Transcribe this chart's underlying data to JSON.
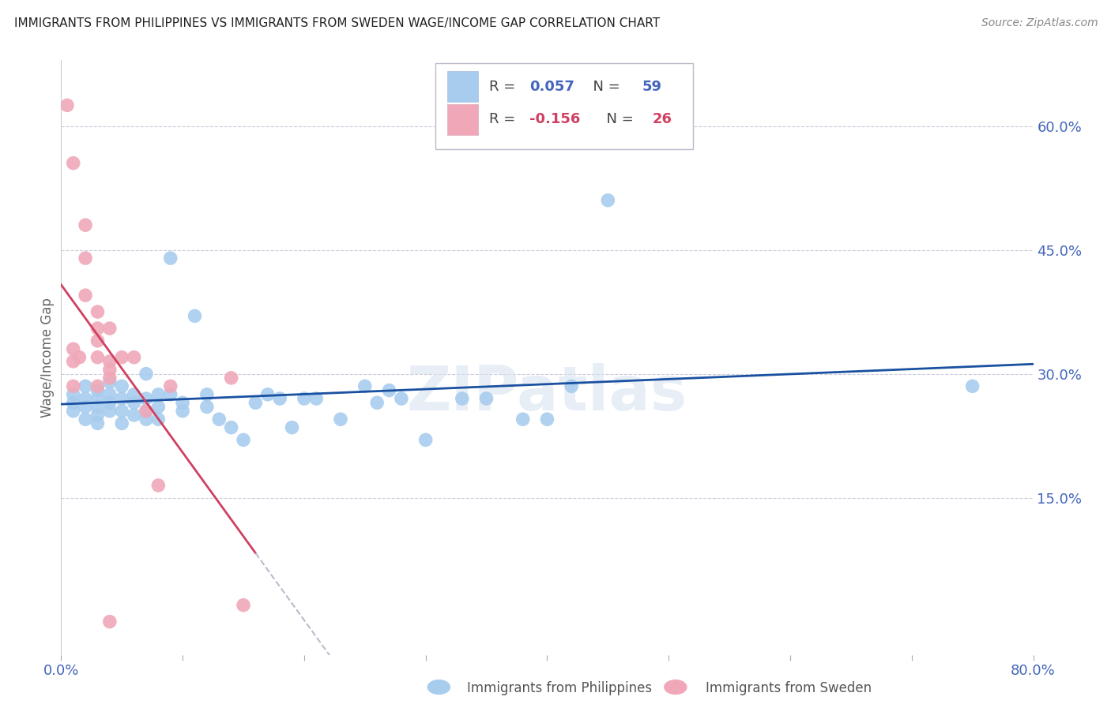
{
  "title": "IMMIGRANTS FROM PHILIPPINES VS IMMIGRANTS FROM SWEDEN WAGE/INCOME GAP CORRELATION CHART",
  "source": "Source: ZipAtlas.com",
  "ylabel": "Wage/Income Gap",
  "xlim": [
    0.0,
    0.8
  ],
  "ylim": [
    -0.04,
    0.68
  ],
  "xticks": [
    0.0,
    0.1,
    0.2,
    0.3,
    0.4,
    0.5,
    0.6,
    0.7,
    0.8
  ],
  "xticklabels": [
    "0.0%",
    "",
    "",
    "",
    "",
    "",
    "",
    "",
    "80.0%"
  ],
  "yticks_right": [
    0.15,
    0.3,
    0.45,
    0.6
  ],
  "ytick_labels_right": [
    "15.0%",
    "30.0%",
    "45.0%",
    "60.0%"
  ],
  "blue_color": "#A8CCEE",
  "pink_color": "#F0A8B8",
  "blue_line_color": "#1A50A0",
  "pink_line_color": "#D04060",
  "legend_R_blue": "0.057",
  "legend_N_blue": "59",
  "legend_R_pink": "-0.156",
  "legend_N_pink": "26",
  "blue_scatter_x": [
    0.01,
    0.01,
    0.01,
    0.02,
    0.02,
    0.02,
    0.02,
    0.03,
    0.03,
    0.03,
    0.03,
    0.03,
    0.04,
    0.04,
    0.04,
    0.04,
    0.05,
    0.05,
    0.05,
    0.05,
    0.06,
    0.06,
    0.06,
    0.07,
    0.07,
    0.07,
    0.07,
    0.08,
    0.08,
    0.08,
    0.09,
    0.09,
    0.1,
    0.1,
    0.11,
    0.12,
    0.12,
    0.13,
    0.14,
    0.15,
    0.16,
    0.17,
    0.18,
    0.19,
    0.2,
    0.21,
    0.23,
    0.25,
    0.26,
    0.27,
    0.28,
    0.3,
    0.33,
    0.35,
    0.38,
    0.4,
    0.42,
    0.45,
    0.75
  ],
  "blue_scatter_y": [
    0.275,
    0.265,
    0.255,
    0.285,
    0.27,
    0.26,
    0.245,
    0.28,
    0.27,
    0.26,
    0.25,
    0.24,
    0.29,
    0.275,
    0.265,
    0.255,
    0.285,
    0.27,
    0.255,
    0.24,
    0.275,
    0.265,
    0.25,
    0.3,
    0.27,
    0.255,
    0.245,
    0.275,
    0.26,
    0.245,
    0.44,
    0.275,
    0.265,
    0.255,
    0.37,
    0.275,
    0.26,
    0.245,
    0.235,
    0.22,
    0.265,
    0.275,
    0.27,
    0.235,
    0.27,
    0.27,
    0.245,
    0.285,
    0.265,
    0.28,
    0.27,
    0.22,
    0.27,
    0.27,
    0.245,
    0.245,
    0.285,
    0.51,
    0.285
  ],
  "pink_scatter_x": [
    0.005,
    0.01,
    0.01,
    0.01,
    0.01,
    0.015,
    0.02,
    0.02,
    0.02,
    0.03,
    0.03,
    0.03,
    0.03,
    0.03,
    0.04,
    0.04,
    0.04,
    0.04,
    0.04,
    0.05,
    0.06,
    0.07,
    0.08,
    0.09,
    0.14,
    0.15
  ],
  "pink_scatter_y": [
    0.625,
    0.555,
    0.33,
    0.315,
    0.285,
    0.32,
    0.48,
    0.44,
    0.395,
    0.375,
    0.355,
    0.34,
    0.32,
    0.285,
    0.355,
    0.315,
    0.305,
    0.295,
    0.0,
    0.32,
    0.32,
    0.255,
    0.165,
    0.285,
    0.295,
    0.02
  ],
  "watermark": "ZIPatlas",
  "background_color": "#FFFFFF",
  "grid_color": "#CCCCDD",
  "axis_label_color": "#4466BB",
  "title_color": "#222222"
}
